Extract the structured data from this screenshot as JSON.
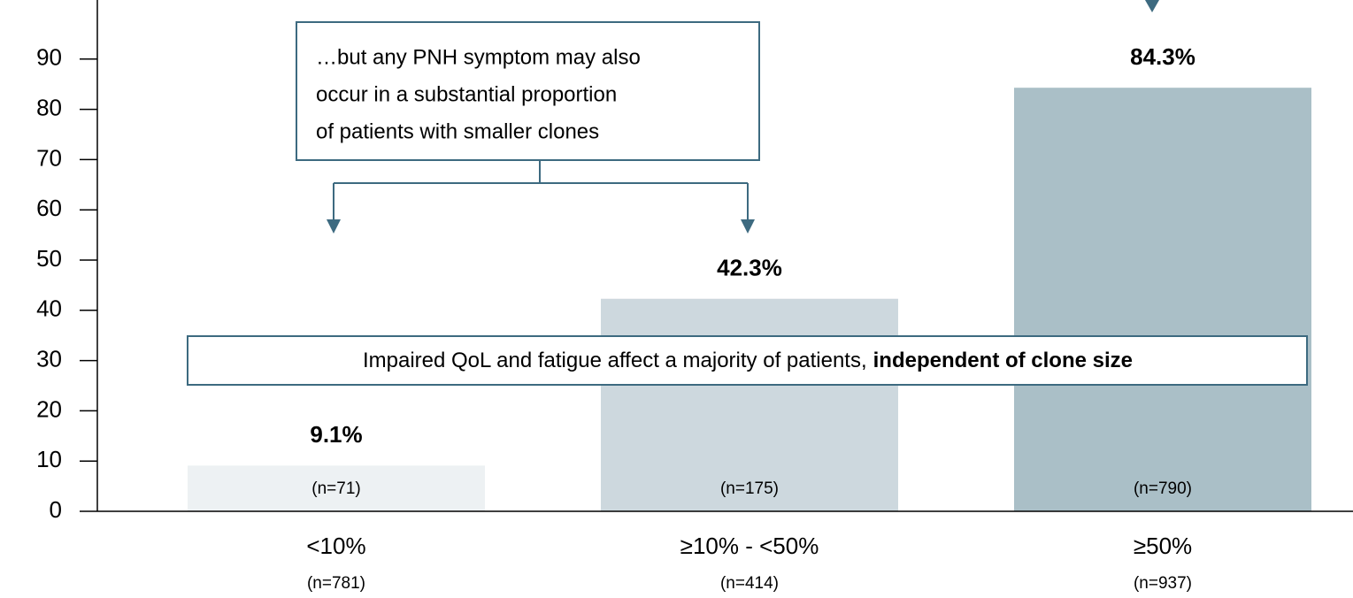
{
  "chart_data": {
    "type": "bar",
    "categories": [
      "<10%",
      "≥10% - <50%",
      "≥50%"
    ],
    "category_subtitles": [
      "(n=781)",
      "(n=414)",
      "(n=937)"
    ],
    "values": [
      9.1,
      42.3,
      84.3
    ],
    "value_labels": [
      "9.1%",
      "42.3%",
      "84.3%"
    ],
    "bar_labels": [
      "(n=71)",
      "(n=175)",
      "(n=790)"
    ],
    "colors": [
      "#edf1f3",
      "#cdd8de",
      "#aabfc7"
    ],
    "ylim": [
      0,
      100
    ],
    "yticks": [
      0,
      10,
      20,
      30,
      40,
      50,
      60,
      70,
      80,
      90
    ],
    "grid": false,
    "annotations": [
      {
        "lines": [
          "…but any PNH symptom may also",
          "occur in a substantial proportion",
          "of patients with smaller clones"
        ]
      },
      {
        "text": "Impaired QoL and fatigue affect a majority of patients,",
        "bold": "independent of clone size"
      }
    ]
  }
}
